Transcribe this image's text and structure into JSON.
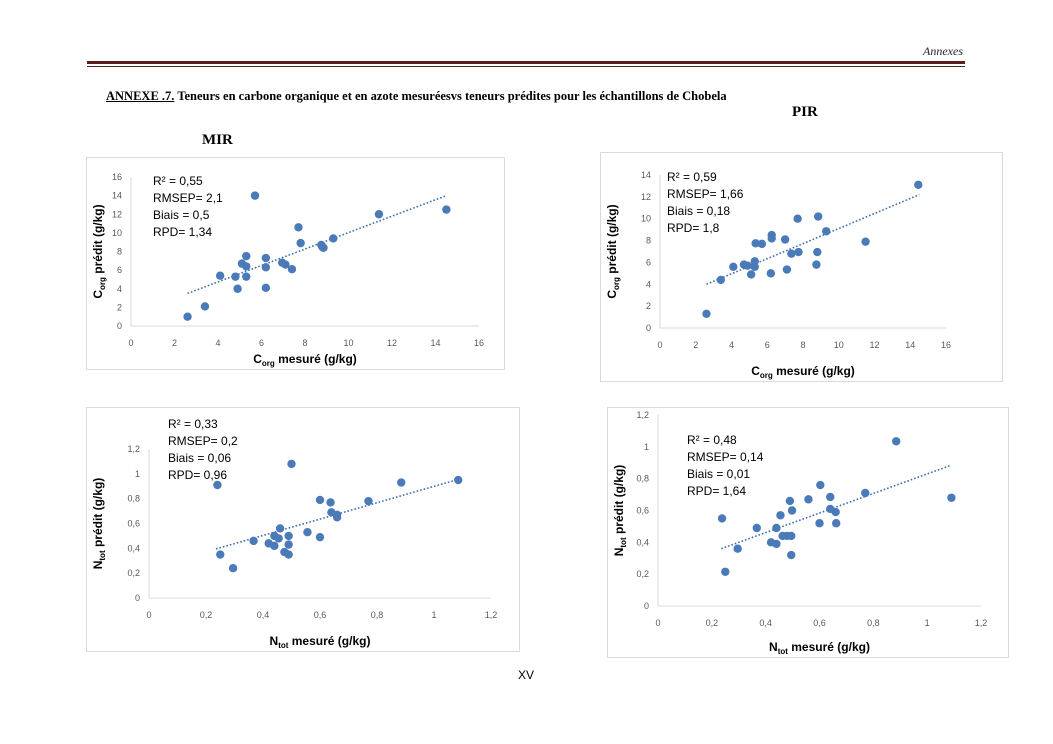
{
  "header": {
    "running_head": "Annexes",
    "rule_color": "#5b1e1f"
  },
  "title": {
    "label": "ANNEXE .7.",
    "text": " Teneurs en carbone organique et en  azote mesuréesvs teneurs prédites pour  les échantillons de  Chobela"
  },
  "sections": {
    "pir": "PIR",
    "mir": "MIR"
  },
  "footer": {
    "page_number": "XV"
  },
  "colors": {
    "point": "#4a7ab8",
    "trend": "#3c6fb0",
    "axis": "#d9d9d9",
    "tick": "#595959"
  },
  "chart_data": [
    {
      "id": "corg-mir",
      "type": "scatter",
      "section": "MIR",
      "xlabel": {
        "main": "C",
        "sub": "org",
        "rest": " mesuré (g/kg)"
      },
      "ylabel": {
        "main": "C",
        "sub": "org",
        "rest": " prédit (g/kg)"
      },
      "xlim": [
        0,
        16
      ],
      "ylim": [
        0,
        16
      ],
      "xticks": [
        "0",
        "2",
        "4",
        "6",
        "8",
        "10",
        "12",
        "14",
        "16"
      ],
      "yticks": [
        "0",
        "2",
        "4",
        "6",
        "8",
        "10",
        "12",
        "14",
        "16"
      ],
      "xtick_values": [
        0,
        2,
        4,
        6,
        8,
        10,
        12,
        14,
        16
      ],
      "ytick_values": [
        0,
        2,
        4,
        6,
        8,
        10,
        12,
        14,
        16
      ],
      "stats": [
        "R² = 0,55",
        "RMSEP= 2,1",
        "Biais = 0,5",
        "RPD= 1,34"
      ],
      "trendline": {
        "x": [
          2.6,
          14.5
        ],
        "y": [
          3.5,
          14.0
        ],
        "style": "dotted"
      },
      "grid": false,
      "points": [
        [
          2.6,
          1.0
        ],
        [
          3.4,
          2.1
        ],
        [
          4.1,
          5.4
        ],
        [
          4.8,
          5.3
        ],
        [
          4.9,
          4.0
        ],
        [
          5.1,
          6.7
        ],
        [
          5.3,
          7.5
        ],
        [
          5.3,
          6.4
        ],
        [
          5.3,
          5.3
        ],
        [
          5.7,
          14.0
        ],
        [
          6.2,
          7.3
        ],
        [
          6.2,
          6.3
        ],
        [
          6.2,
          4.1
        ],
        [
          6.95,
          6.8
        ],
        [
          7.1,
          6.6
        ],
        [
          7.4,
          6.1
        ],
        [
          7.7,
          10.6
        ],
        [
          7.8,
          8.9
        ],
        [
          8.75,
          8.7
        ],
        [
          8.8,
          8.5
        ],
        [
          8.85,
          8.4
        ],
        [
          9.3,
          9.4
        ],
        [
          11.4,
          12.0
        ],
        [
          14.5,
          12.5
        ]
      ]
    },
    {
      "id": "corg-pir",
      "type": "scatter",
      "section": "PIR",
      "xlabel": {
        "main": "C",
        "sub": "org",
        "rest": " mesuré (g/kg)"
      },
      "ylabel": {
        "main": "C",
        "sub": "org",
        "rest": " prédit (g/kg)"
      },
      "xlim": [
        0,
        16
      ],
      "ylim": [
        0,
        14
      ],
      "xticks": [
        "0",
        "2",
        "4",
        "6",
        "8",
        "10",
        "12",
        "14",
        "16"
      ],
      "yticks": [
        "0",
        "2",
        "4",
        "6",
        "8",
        "10",
        "12",
        "14"
      ],
      "xtick_values": [
        0,
        2,
        4,
        6,
        8,
        10,
        12,
        14,
        16
      ],
      "ytick_values": [
        0,
        2,
        4,
        6,
        8,
        10,
        12,
        14
      ],
      "stats": [
        "R² = 0,59",
        "RMSEP= 1,66",
        "Biais = 0,18",
        "RPD= 1,8"
      ],
      "trendline": {
        "x": [
          2.6,
          14.5
        ],
        "y": [
          4.0,
          12.2
        ],
        "style": "dotted"
      },
      "grid": false,
      "points": [
        [
          2.6,
          1.3
        ],
        [
          3.4,
          4.4
        ],
        [
          4.1,
          5.6
        ],
        [
          4.7,
          5.8
        ],
        [
          4.9,
          5.7
        ],
        [
          5.1,
          4.9
        ],
        [
          5.3,
          6.1
        ],
        [
          5.3,
          5.6
        ],
        [
          5.35,
          7.75
        ],
        [
          5.7,
          7.7
        ],
        [
          6.25,
          8.5
        ],
        [
          6.25,
          8.2
        ],
        [
          6.2,
          5.0
        ],
        [
          7.0,
          8.1
        ],
        [
          7.1,
          5.35
        ],
        [
          7.35,
          6.8
        ],
        [
          7.75,
          6.95
        ],
        [
          7.7,
          10.0
        ],
        [
          8.75,
          5.8
        ],
        [
          8.8,
          6.95
        ],
        [
          8.85,
          10.2
        ],
        [
          9.3,
          8.85
        ],
        [
          11.5,
          7.9
        ],
        [
          14.45,
          13.1
        ]
      ]
    },
    {
      "id": "ntot-mir",
      "type": "scatter",
      "section": "MIR",
      "xlabel": {
        "main": "N",
        "sub": "tot",
        "rest": " mesuré (g/kg)"
      },
      "ylabel": {
        "main": "N",
        "sub": "tot",
        "rest": " prédit (g/kg)"
      },
      "xlim": [
        0,
        1.2
      ],
      "ylim": [
        0,
        1.2
      ],
      "xticks": [
        "0",
        "0,2",
        "0,4",
        "0,6",
        "0,8",
        "1",
        "1,2"
      ],
      "yticks": [
        "0",
        "0,2",
        "0,4",
        "0,6",
        "0,8",
        "1",
        "1,2"
      ],
      "xtick_values": [
        0,
        0.2,
        0.4,
        0.6,
        0.8,
        1.0,
        1.2
      ],
      "ytick_values": [
        0,
        0.2,
        0.4,
        0.6,
        0.8,
        1.0,
        1.2
      ],
      "stats": [
        "R² = 0,33",
        "RMSEP= 0,2",
        "Biais = 0,06",
        "RPD= 0,96"
      ],
      "trendline": {
        "x": [
          0.235,
          1.085
        ],
        "y": [
          0.395,
          0.955
        ],
        "style": "dotted"
      },
      "grid": false,
      "points": [
        [
          0.24,
          0.91
        ],
        [
          0.25,
          0.35
        ],
        [
          0.295,
          0.24
        ],
        [
          0.367,
          0.46
        ],
        [
          0.42,
          0.44
        ],
        [
          0.44,
          0.42
        ],
        [
          0.44,
          0.5
        ],
        [
          0.455,
          0.48
        ],
        [
          0.46,
          0.56
        ],
        [
          0.475,
          0.37
        ],
        [
          0.49,
          0.35
        ],
        [
          0.49,
          0.43
        ],
        [
          0.49,
          0.5
        ],
        [
          0.5,
          1.08
        ],
        [
          0.556,
          0.53
        ],
        [
          0.6,
          0.49
        ],
        [
          0.6,
          0.79
        ],
        [
          0.637,
          0.77
        ],
        [
          0.64,
          0.69
        ],
        [
          0.66,
          0.67
        ],
        [
          0.66,
          0.65
        ],
        [
          0.77,
          0.78
        ],
        [
          0.885,
          0.93
        ],
        [
          1.085,
          0.95
        ]
      ]
    },
    {
      "id": "ntot-pir",
      "type": "scatter",
      "section": "PIR",
      "xlabel": {
        "main": "N",
        "sub": "tot",
        "rest": " mesuré (g/kg)"
      },
      "ylabel": {
        "main": "N",
        "sub": "tot",
        "rest": " prédit (g/kg)"
      },
      "xlim": [
        0,
        1.2
      ],
      "ylim": [
        0,
        1.2
      ],
      "xticks": [
        "0",
        "0,2",
        "0,4",
        "0,6",
        "0,8",
        "1",
        "1,2"
      ],
      "yticks": [
        "0",
        "0,2",
        "0,4",
        "0,6",
        "0,8",
        "1",
        "1,2"
      ],
      "xtick_values": [
        0,
        0.2,
        0.4,
        0.6,
        0.8,
        1.0,
        1.2
      ],
      "ytick_values": [
        0,
        0.2,
        0.4,
        0.6,
        0.8,
        1.0,
        1.2
      ],
      "stats": [
        "R² = 0,48",
        "RMSEP= 0,14",
        "Biais = 0,01",
        "RPD= 1,64"
      ],
      "trendline": {
        "x": [
          0.235,
          1.09
        ],
        "y": [
          0.36,
          0.885
        ],
        "style": "dotted"
      },
      "grid": false,
      "points": [
        [
          0.238,
          0.55
        ],
        [
          0.25,
          0.215
        ],
        [
          0.296,
          0.36
        ],
        [
          0.367,
          0.49
        ],
        [
          0.42,
          0.4
        ],
        [
          0.44,
          0.39
        ],
        [
          0.44,
          0.49
        ],
        [
          0.455,
          0.57
        ],
        [
          0.463,
          0.44
        ],
        [
          0.48,
          0.44
        ],
        [
          0.495,
          0.44
        ],
        [
          0.49,
          0.66
        ],
        [
          0.498,
          0.6
        ],
        [
          0.495,
          0.32
        ],
        [
          0.559,
          0.67
        ],
        [
          0.603,
          0.76
        ],
        [
          0.6,
          0.52
        ],
        [
          0.64,
          0.685
        ],
        [
          0.64,
          0.61
        ],
        [
          0.66,
          0.59
        ],
        [
          0.662,
          0.52
        ],
        [
          0.77,
          0.71
        ],
        [
          0.885,
          1.035
        ],
        [
          1.09,
          0.68
        ]
      ]
    }
  ]
}
